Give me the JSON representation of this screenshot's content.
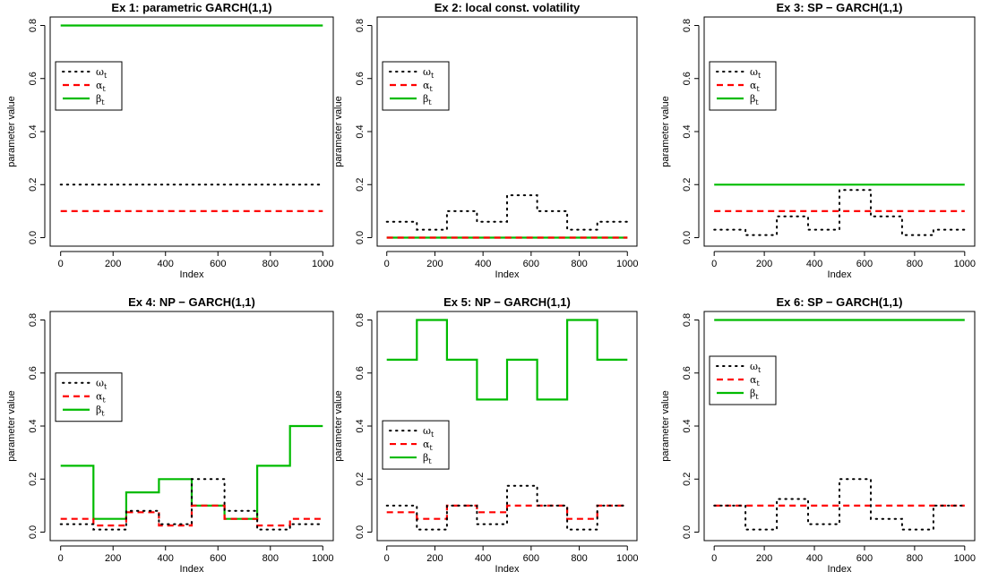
{
  "figure": {
    "title": ""
  },
  "colors": {
    "omega": "#000000",
    "alpha": "#ff0000",
    "beta": "#00bb00"
  },
  "chart_data": [
    {
      "type": "line",
      "title": "Ex 1: parametric GARCH(1,1)",
      "xlabel": "Index",
      "ylabel": "parameter value",
      "xlim": [
        0,
        1000
      ],
      "ylim": [
        0,
        0.8
      ],
      "xticks": [
        "0",
        "200",
        "400",
        "600",
        "800",
        "1000"
      ],
      "yticks": [
        "0.0",
        "0.2",
        "0.4",
        "0.6",
        "0.8"
      ],
      "legend": {
        "position": "top-left",
        "entries": [
          "ω_t",
          "α_t",
          "β_t"
        ]
      },
      "series": [
        {
          "name": "ω_t",
          "style": "dotted",
          "points": [
            [
              0,
              0.2
            ],
            [
              1000,
              0.2
            ]
          ]
        },
        {
          "name": "α_t",
          "style": "dashed",
          "points": [
            [
              0,
              0.1
            ],
            [
              1000,
              0.1
            ]
          ]
        },
        {
          "name": "β_t",
          "style": "solid",
          "points": [
            [
              0,
              0.8
            ],
            [
              1000,
              0.8
            ]
          ]
        }
      ]
    },
    {
      "type": "line",
      "title": "Ex 2: local const. volatility",
      "xlabel": "Index",
      "ylabel": "parameter value",
      "xlim": [
        0,
        1000
      ],
      "ylim": [
        0,
        0.8
      ],
      "xticks": [
        "0",
        "200",
        "400",
        "600",
        "800",
        "1000"
      ],
      "yticks": [
        "0.0",
        "0.2",
        "0.4",
        "0.6",
        "0.8"
      ],
      "legend": {
        "position": "top-left",
        "entries": [
          "ω_t",
          "α_t",
          "β_t"
        ]
      },
      "series": [
        {
          "name": "ω_t",
          "style": "dotted",
          "points": [
            [
              0,
              0.06
            ],
            [
              125,
              0.06
            ],
            [
              125,
              0.03
            ],
            [
              250,
              0.03
            ],
            [
              250,
              0.1
            ],
            [
              375,
              0.1
            ],
            [
              375,
              0.06
            ],
            [
              500,
              0.06
            ],
            [
              500,
              0.16
            ],
            [
              625,
              0.16
            ],
            [
              625,
              0.1
            ],
            [
              750,
              0.1
            ],
            [
              750,
              0.03
            ],
            [
              875,
              0.03
            ],
            [
              875,
              0.06
            ],
            [
              1000,
              0.06
            ]
          ]
        },
        {
          "name": "α_t",
          "style": "dashed",
          "points": [
            [
              0,
              0.0
            ],
            [
              1000,
              0.0
            ]
          ]
        },
        {
          "name": "β_t",
          "style": "solid",
          "points": [
            [
              0,
              0.0
            ],
            [
              1000,
              0.0
            ]
          ]
        }
      ]
    },
    {
      "type": "line",
      "title": "Ex 3: SP − GARCH(1,1)",
      "xlabel": "Index",
      "ylabel": "parameter value",
      "xlim": [
        0,
        1000
      ],
      "ylim": [
        0,
        0.8
      ],
      "xticks": [
        "0",
        "200",
        "400",
        "600",
        "800",
        "1000"
      ],
      "yticks": [
        "0.0",
        "0.2",
        "0.4",
        "0.6",
        "0.8"
      ],
      "legend": {
        "position": "top-left",
        "entries": [
          "ω_t",
          "α_t",
          "β_t"
        ]
      },
      "series": [
        {
          "name": "ω_t",
          "style": "dotted",
          "points": [
            [
              0,
              0.03
            ],
            [
              125,
              0.03
            ],
            [
              125,
              0.01
            ],
            [
              250,
              0.01
            ],
            [
              250,
              0.08
            ],
            [
              375,
              0.08
            ],
            [
              375,
              0.03
            ],
            [
              500,
              0.03
            ],
            [
              500,
              0.18
            ],
            [
              625,
              0.18
            ],
            [
              625,
              0.08
            ],
            [
              750,
              0.08
            ],
            [
              750,
              0.01
            ],
            [
              875,
              0.01
            ],
            [
              875,
              0.03
            ],
            [
              1000,
              0.03
            ]
          ]
        },
        {
          "name": "α_t",
          "style": "dashed",
          "points": [
            [
              0,
              0.1
            ],
            [
              1000,
              0.1
            ]
          ]
        },
        {
          "name": "β_t",
          "style": "solid",
          "points": [
            [
              0,
              0.2
            ],
            [
              1000,
              0.2
            ]
          ]
        }
      ]
    },
    {
      "type": "line",
      "title": "Ex 4: NP − GARCH(1,1)",
      "xlabel": "Index",
      "ylabel": "parameter value",
      "xlim": [
        0,
        1000
      ],
      "ylim": [
        0,
        0.8
      ],
      "xticks": [
        "0",
        "200",
        "400",
        "600",
        "800",
        "1000"
      ],
      "yticks": [
        "0.0",
        "0.2",
        "0.4",
        "0.6",
        "0.8"
      ],
      "legend": {
        "position": "middle-left",
        "entries": [
          "ω_t",
          "α_t",
          "β_t"
        ]
      },
      "series": [
        {
          "name": "ω_t",
          "style": "dotted",
          "points": [
            [
              0,
              0.03
            ],
            [
              125,
              0.03
            ],
            [
              125,
              0.01
            ],
            [
              250,
              0.01
            ],
            [
              250,
              0.08
            ],
            [
              375,
              0.08
            ],
            [
              375,
              0.03
            ],
            [
              500,
              0.03
            ],
            [
              500,
              0.2
            ],
            [
              625,
              0.2
            ],
            [
              625,
              0.08
            ],
            [
              750,
              0.08
            ],
            [
              750,
              0.01
            ],
            [
              875,
              0.01
            ],
            [
              875,
              0.03
            ],
            [
              1000,
              0.03
            ]
          ]
        },
        {
          "name": "α_t",
          "style": "dashed",
          "points": [
            [
              0,
              0.05
            ],
            [
              125,
              0.05
            ],
            [
              125,
              0.025
            ],
            [
              250,
              0.025
            ],
            [
              250,
              0.075
            ],
            [
              375,
              0.075
            ],
            [
              375,
              0.025
            ],
            [
              500,
              0.025
            ],
            [
              500,
              0.1
            ],
            [
              625,
              0.1
            ],
            [
              625,
              0.05
            ],
            [
              750,
              0.05
            ],
            [
              750,
              0.025
            ],
            [
              875,
              0.025
            ],
            [
              875,
              0.05
            ],
            [
              1000,
              0.05
            ]
          ]
        },
        {
          "name": "β_t",
          "style": "solid",
          "points": [
            [
              0,
              0.25
            ],
            [
              125,
              0.25
            ],
            [
              125,
              0.05
            ],
            [
              250,
              0.05
            ],
            [
              250,
              0.15
            ],
            [
              375,
              0.15
            ],
            [
              375,
              0.2
            ],
            [
              500,
              0.2
            ],
            [
              500,
              0.1
            ],
            [
              625,
              0.1
            ],
            [
              625,
              0.05
            ],
            [
              750,
              0.05
            ],
            [
              750,
              0.25
            ],
            [
              875,
              0.25
            ],
            [
              875,
              0.4
            ],
            [
              1000,
              0.4
            ]
          ]
        }
      ]
    },
    {
      "type": "line",
      "title": "Ex 5: NP − GARCH(1,1)",
      "xlabel": "Index",
      "ylabel": "parameter value",
      "xlim": [
        0,
        1000
      ],
      "ylim": [
        0,
        0.8
      ],
      "xticks": [
        "0",
        "200",
        "400",
        "600",
        "800",
        "1000"
      ],
      "yticks": [
        "0.0",
        "0.2",
        "0.4",
        "0.6",
        "0.8"
      ],
      "legend": {
        "position": "middle-left",
        "entries": [
          "ω_t",
          "α_t",
          "β_t"
        ]
      },
      "series": [
        {
          "name": "ω_t",
          "style": "dotted",
          "points": [
            [
              0,
              0.1
            ],
            [
              125,
              0.1
            ],
            [
              125,
              0.01
            ],
            [
              250,
              0.01
            ],
            [
              250,
              0.1
            ],
            [
              375,
              0.1
            ],
            [
              375,
              0.03
            ],
            [
              500,
              0.03
            ],
            [
              500,
              0.175
            ],
            [
              625,
              0.175
            ],
            [
              625,
              0.1
            ],
            [
              750,
              0.1
            ],
            [
              750,
              0.01
            ],
            [
              875,
              0.01
            ],
            [
              875,
              0.1
            ],
            [
              1000,
              0.1
            ]
          ]
        },
        {
          "name": "α_t",
          "style": "dashed",
          "points": [
            [
              0,
              0.075
            ],
            [
              125,
              0.075
            ],
            [
              125,
              0.05
            ],
            [
              250,
              0.05
            ],
            [
              250,
              0.1
            ],
            [
              375,
              0.1
            ],
            [
              375,
              0.075
            ],
            [
              500,
              0.075
            ],
            [
              500,
              0.1
            ],
            [
              625,
              0.1
            ],
            [
              625,
              0.1
            ],
            [
              750,
              0.1
            ],
            [
              750,
              0.05
            ],
            [
              875,
              0.05
            ],
            [
              875,
              0.1
            ],
            [
              1000,
              0.1
            ]
          ]
        },
        {
          "name": "β_t",
          "style": "solid",
          "points": [
            [
              0,
              0.65
            ],
            [
              125,
              0.65
            ],
            [
              125,
              0.8
            ],
            [
              250,
              0.8
            ],
            [
              250,
              0.65
            ],
            [
              375,
              0.65
            ],
            [
              375,
              0.5
            ],
            [
              500,
              0.5
            ],
            [
              500,
              0.65
            ],
            [
              625,
              0.65
            ],
            [
              625,
              0.5
            ],
            [
              750,
              0.5
            ],
            [
              750,
              0.8
            ],
            [
              875,
              0.8
            ],
            [
              875,
              0.65
            ],
            [
              1000,
              0.65
            ]
          ]
        }
      ]
    },
    {
      "type": "line",
      "title": "Ex 6: SP − GARCH(1,1)",
      "xlabel": "Index",
      "ylabel": "parameter value",
      "xlim": [
        0,
        1000
      ],
      "ylim": [
        0,
        0.8
      ],
      "xticks": [
        "0",
        "200",
        "400",
        "600",
        "800",
        "1000"
      ],
      "yticks": [
        "0.0",
        "0.2",
        "0.4",
        "0.6",
        "0.8"
      ],
      "legend": {
        "position": "top-left",
        "entries": [
          "ω_t",
          "α_t",
          "β_t"
        ]
      },
      "series": [
        {
          "name": "ω_t",
          "style": "dotted",
          "points": [
            [
              0,
              0.1
            ],
            [
              125,
              0.1
            ],
            [
              125,
              0.01
            ],
            [
              250,
              0.01
            ],
            [
              250,
              0.125
            ],
            [
              375,
              0.125
            ],
            [
              375,
              0.03
            ],
            [
              500,
              0.03
            ],
            [
              500,
              0.2
            ],
            [
              625,
              0.2
            ],
            [
              625,
              0.05
            ],
            [
              750,
              0.05
            ],
            [
              750,
              0.01
            ],
            [
              875,
              0.01
            ],
            [
              875,
              0.1
            ],
            [
              1000,
              0.1
            ]
          ]
        },
        {
          "name": "α_t",
          "style": "dashed",
          "points": [
            [
              0,
              0.1
            ],
            [
              1000,
              0.1
            ]
          ]
        },
        {
          "name": "β_t",
          "style": "solid",
          "points": [
            [
              0,
              0.8
            ],
            [
              1000,
              0.8
            ]
          ]
        }
      ]
    }
  ]
}
